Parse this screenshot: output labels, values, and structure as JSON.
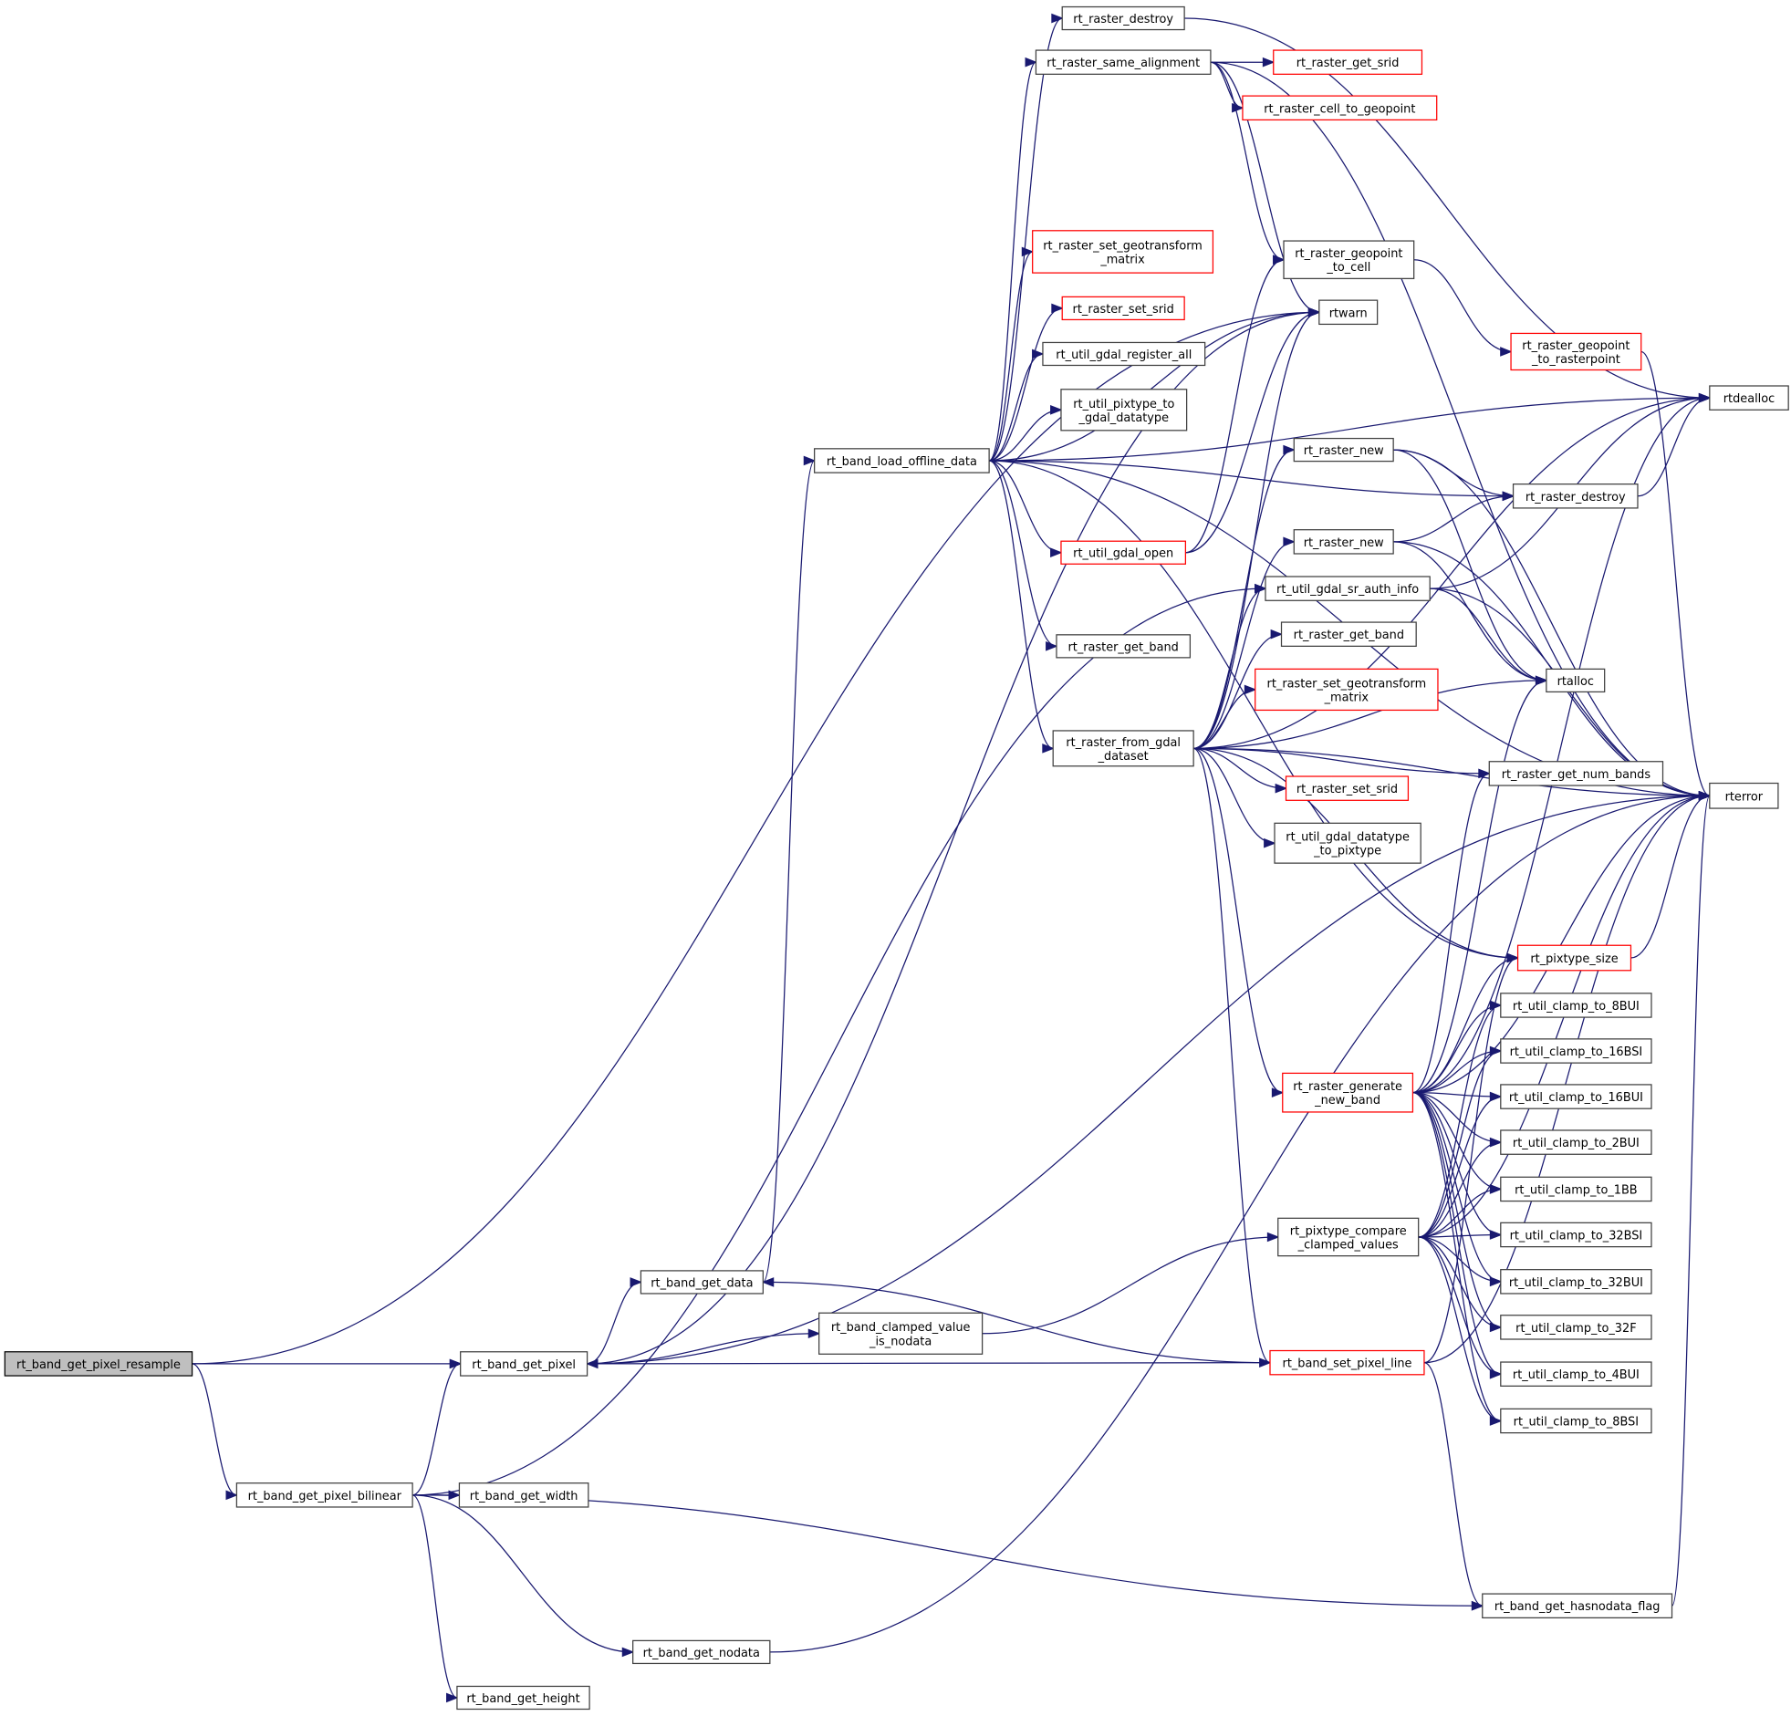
{
  "colors": {
    "edge": "#191970",
    "missing_doc_border": "#ff0000",
    "normal_border": "#404040",
    "root_fill": "#bfbfbf"
  },
  "nodes": [
    {
      "id": "resample",
      "label": "rt_band_get_pixel_resample",
      "style": "highlight"
    },
    {
      "id": "get_pixel",
      "label": "rt_band_get_pixel",
      "style": "normal"
    },
    {
      "id": "bilinear",
      "label": "rt_band_get_pixel_bilinear",
      "style": "normal"
    },
    {
      "id": "get_width",
      "label": "rt_band_get_width",
      "style": "normal"
    },
    {
      "id": "get_height",
      "label": "rt_band_get_height",
      "style": "normal"
    },
    {
      "id": "get_nodata",
      "label": "rt_band_get_nodata",
      "style": "normal"
    },
    {
      "id": "get_data",
      "label": "rt_band_get_data",
      "style": "normal"
    },
    {
      "id": "clamped_nodata",
      "label": "rt_band_clamped_value\n_is_nodata",
      "style": "normal"
    },
    {
      "id": "load_offline",
      "label": "rt_band_load_offline_data",
      "style": "normal"
    },
    {
      "id": "raster_destroy_a",
      "label": "rt_raster_destroy",
      "style": "normal"
    },
    {
      "id": "same_alignment",
      "label": "rt_raster_same_alignment",
      "style": "normal"
    },
    {
      "id": "get_srid",
      "label": "rt_raster_get_srid",
      "style": "red"
    },
    {
      "id": "cell_to_geopoint",
      "label": "rt_raster_cell_to_geopoint",
      "style": "red"
    },
    {
      "id": "set_geotransform_a",
      "label": "rt_raster_set_geotransform\n_matrix",
      "style": "red"
    },
    {
      "id": "set_srid_a",
      "label": "rt_raster_set_srid",
      "style": "red"
    },
    {
      "id": "register_all",
      "label": "rt_util_gdal_register_all",
      "style": "normal"
    },
    {
      "id": "pixtype_to_gdal",
      "label": "rt_util_pixtype_to\n_gdal_datatype",
      "style": "normal"
    },
    {
      "id": "geopoint_to_cell",
      "label": "rt_raster_geopoint\n_to_cell",
      "style": "normal"
    },
    {
      "id": "rtwarn",
      "label": "rtwarn",
      "style": "normal"
    },
    {
      "id": "geopoint_to_rasterpoint",
      "label": "rt_raster_geopoint\n_to_rasterpoint",
      "style": "red"
    },
    {
      "id": "rtdealloc",
      "label": "rtdealloc",
      "style": "normal"
    },
    {
      "id": "raster_new_a",
      "label": "rt_raster_new",
      "style": "normal"
    },
    {
      "id": "raster_destroy_b",
      "label": "rt_raster_destroy",
      "style": "normal"
    },
    {
      "id": "gdal_open",
      "label": "rt_util_gdal_open",
      "style": "red"
    },
    {
      "id": "raster_new_b",
      "label": "rt_raster_new",
      "style": "normal"
    },
    {
      "id": "sr_auth_info",
      "label": "rt_util_gdal_sr_auth_info",
      "style": "normal"
    },
    {
      "id": "get_band_a",
      "label": "rt_raster_get_band",
      "style": "normal"
    },
    {
      "id": "get_band_b",
      "label": "rt_raster_get_band",
      "style": "normal"
    },
    {
      "id": "set_geotransform_b",
      "label": "rt_raster_set_geotransform\n_matrix",
      "style": "red"
    },
    {
      "id": "rtalloc",
      "label": "rtalloc",
      "style": "normal"
    },
    {
      "id": "from_gdal",
      "label": "rt_raster_from_gdal\n_dataset",
      "style": "normal"
    },
    {
      "id": "num_bands",
      "label": "rt_raster_get_num_bands",
      "style": "normal"
    },
    {
      "id": "rterror",
      "label": "rterror",
      "style": "normal"
    },
    {
      "id": "set_srid_b",
      "label": "rt_raster_set_srid",
      "style": "red"
    },
    {
      "id": "datatype_to_pixtype",
      "label": "rt_util_gdal_datatype\n_to_pixtype",
      "style": "normal"
    },
    {
      "id": "pixtype_size",
      "label": "rt_pixtype_size",
      "style": "red"
    },
    {
      "id": "c8BUI",
      "label": "rt_util_clamp_to_8BUI",
      "style": "normal"
    },
    {
      "id": "c16BSI",
      "label": "rt_util_clamp_to_16BSI",
      "style": "normal"
    },
    {
      "id": "c16BUI",
      "label": "rt_util_clamp_to_16BUI",
      "style": "normal"
    },
    {
      "id": "c2BUI",
      "label": "rt_util_clamp_to_2BUI",
      "style": "normal"
    },
    {
      "id": "c1BB",
      "label": "rt_util_clamp_to_1BB",
      "style": "normal"
    },
    {
      "id": "c32BSI",
      "label": "rt_util_clamp_to_32BSI",
      "style": "normal"
    },
    {
      "id": "c32BUI",
      "label": "rt_util_clamp_to_32BUI",
      "style": "normal"
    },
    {
      "id": "c32F",
      "label": "rt_util_clamp_to_32F",
      "style": "normal"
    },
    {
      "id": "c4BUI",
      "label": "rt_util_clamp_to_4BUI",
      "style": "normal"
    },
    {
      "id": "c8BSI",
      "label": "rt_util_clamp_to_8BSI",
      "style": "normal"
    },
    {
      "id": "generate_new_band",
      "label": "rt_raster_generate\n_new_band",
      "style": "red"
    },
    {
      "id": "compare_clamped",
      "label": "rt_pixtype_compare\n_clamped_values",
      "style": "normal"
    },
    {
      "id": "set_pixel_line",
      "label": "rt_band_set_pixel_line",
      "style": "red"
    },
    {
      "id": "hasnodata",
      "label": "rt_band_get_hasnodata_flag",
      "style": "normal"
    }
  ],
  "edges": [
    [
      "resample",
      "get_pixel"
    ],
    [
      "resample",
      "bilinear"
    ],
    [
      "resample",
      "rtwarn"
    ],
    [
      "get_pixel",
      "get_data"
    ],
    [
      "get_pixel",
      "clamped_nodata"
    ],
    [
      "get_pixel",
      "rtwarn"
    ],
    [
      "get_pixel",
      "rterror"
    ],
    [
      "bilinear",
      "get_pixel"
    ],
    [
      "bilinear",
      "get_width"
    ],
    [
      "bilinear",
      "get_height"
    ],
    [
      "bilinear",
      "get_nodata"
    ],
    [
      "bilinear",
      "hasnodata"
    ],
    [
      "bilinear",
      "sr_auth_info"
    ],
    [
      "get_data",
      "load_offline"
    ],
    [
      "clamped_nodata",
      "compare_clamped"
    ],
    [
      "load_offline",
      "raster_destroy_a"
    ],
    [
      "load_offline",
      "same_alignment"
    ],
    [
      "load_offline",
      "set_geotransform_a"
    ],
    [
      "load_offline",
      "set_srid_a"
    ],
    [
      "load_offline",
      "register_all"
    ],
    [
      "load_offline",
      "pixtype_to_gdal"
    ],
    [
      "load_offline",
      "rtwarn"
    ],
    [
      "load_offline",
      "gdal_open"
    ],
    [
      "load_offline",
      "get_band_a"
    ],
    [
      "load_offline",
      "from_gdal"
    ],
    [
      "load_offline",
      "rtdealloc"
    ],
    [
      "load_offline",
      "rterror"
    ],
    [
      "load_offline",
      "raster_destroy_b"
    ],
    [
      "load_offline",
      "pixtype_size"
    ],
    [
      "raster_destroy_a",
      "rtdealloc"
    ],
    [
      "same_alignment",
      "get_srid"
    ],
    [
      "same_alignment",
      "cell_to_geopoint"
    ],
    [
      "same_alignment",
      "geopoint_to_cell"
    ],
    [
      "same_alignment",
      "rterror"
    ],
    [
      "same_alignment",
      "rtwarn"
    ],
    [
      "geopoint_to_cell",
      "geopoint_to_rasterpoint"
    ],
    [
      "geopoint_to_rasterpoint",
      "rterror"
    ],
    [
      "raster_new_a",
      "raster_destroy_b"
    ],
    [
      "raster_new_a",
      "rtalloc"
    ],
    [
      "raster_new_a",
      "rterror"
    ],
    [
      "raster_new_b",
      "raster_destroy_b"
    ],
    [
      "raster_new_b",
      "rtalloc"
    ],
    [
      "raster_new_b",
      "rterror"
    ],
    [
      "raster_destroy_b",
      "rtdealloc"
    ],
    [
      "gdal_open",
      "rtwarn"
    ],
    [
      "gdal_open",
      "geopoint_to_cell"
    ],
    [
      "sr_auth_info",
      "rtdealloc"
    ],
    [
      "sr_auth_info",
      "rtalloc"
    ],
    [
      "sr_auth_info",
      "rterror"
    ],
    [
      "from_gdal",
      "rtwarn"
    ],
    [
      "from_gdal",
      "raster_new_a"
    ],
    [
      "from_gdal",
      "raster_new_b"
    ],
    [
      "from_gdal",
      "sr_auth_info"
    ],
    [
      "from_gdal",
      "get_band_b"
    ],
    [
      "from_gdal",
      "set_geotransform_b"
    ],
    [
      "from_gdal",
      "rtalloc"
    ],
    [
      "from_gdal",
      "set_srid_b"
    ],
    [
      "from_gdal",
      "datatype_to_pixtype"
    ],
    [
      "from_gdal",
      "num_bands"
    ],
    [
      "from_gdal",
      "rterror"
    ],
    [
      "from_gdal",
      "pixtype_size"
    ],
    [
      "from_gdal",
      "generate_new_band"
    ],
    [
      "from_gdal",
      "set_pixel_line"
    ],
    [
      "from_gdal",
      "rtdealloc"
    ],
    [
      "generate_new_band",
      "pixtype_size"
    ],
    [
      "generate_new_band",
      "rterror"
    ],
    [
      "generate_new_band",
      "rtalloc"
    ],
    [
      "generate_new_band",
      "num_bands"
    ],
    [
      "generate_new_band",
      "rtdealloc"
    ],
    [
      "generate_new_band",
      "c8BUI"
    ],
    [
      "generate_new_band",
      "c16BSI"
    ],
    [
      "generate_new_band",
      "c16BUI"
    ],
    [
      "generate_new_band",
      "c2BUI"
    ],
    [
      "generate_new_band",
      "c1BB"
    ],
    [
      "generate_new_band",
      "c32BSI"
    ],
    [
      "generate_new_band",
      "c32BUI"
    ],
    [
      "generate_new_band",
      "c32F"
    ],
    [
      "generate_new_band",
      "c4BUI"
    ],
    [
      "generate_new_band",
      "c8BSI"
    ],
    [
      "compare_clamped",
      "c8BUI"
    ],
    [
      "compare_clamped",
      "c16BSI"
    ],
    [
      "compare_clamped",
      "c16BUI"
    ],
    [
      "compare_clamped",
      "c2BUI"
    ],
    [
      "compare_clamped",
      "c1BB"
    ],
    [
      "compare_clamped",
      "c32BSI"
    ],
    [
      "compare_clamped",
      "c32BUI"
    ],
    [
      "compare_clamped",
      "c32F"
    ],
    [
      "compare_clamped",
      "c4BUI"
    ],
    [
      "compare_clamped",
      "c8BSI"
    ],
    [
      "compare_clamped",
      "rterror"
    ],
    [
      "set_pixel_line",
      "get_data"
    ],
    [
      "set_pixel_line",
      "get_pixel"
    ],
    [
      "set_pixel_line",
      "hasnodata"
    ],
    [
      "set_pixel_line",
      "rterror"
    ],
    [
      "set_pixel_line",
      "pixtype_size"
    ],
    [
      "pixtype_size",
      "rterror"
    ],
    [
      "get_nodata",
      "rterror"
    ],
    [
      "hasnodata",
      "rterror"
    ]
  ]
}
